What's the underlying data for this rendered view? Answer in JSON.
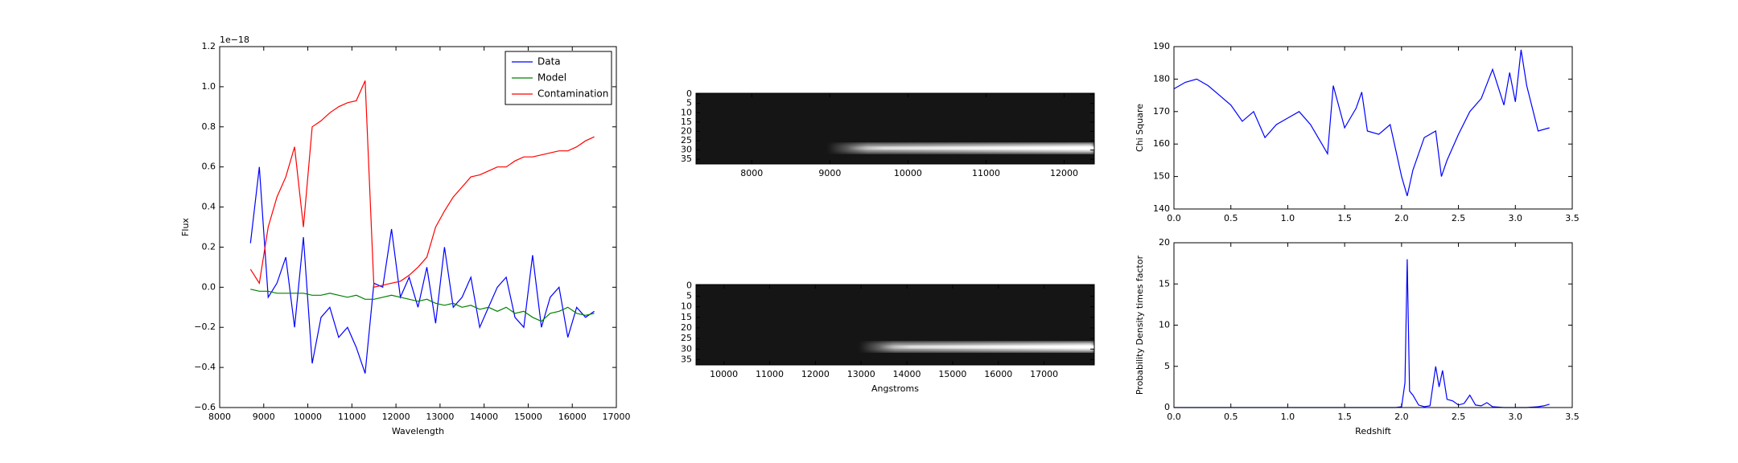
{
  "chart_data": [
    {
      "type": "line",
      "xlabel": "Wavelength",
      "ylabel": "Flux",
      "offset_text": "1e−18",
      "x": [
        8700,
        8900,
        9100,
        9300,
        9500,
        9700,
        9900,
        10100,
        10300,
        10500,
        10700,
        10900,
        11100,
        11300,
        11500,
        11700,
        11900,
        12100,
        12300,
        12500,
        12700,
        12900,
        13100,
        13300,
        13500,
        13700,
        13900,
        14100,
        14300,
        14500,
        14700,
        14900,
        15100,
        15300,
        15500,
        15700,
        15900,
        16100,
        16300,
        16500
      ],
      "series": [
        {
          "name": "Data",
          "color": "#0000ff",
          "values": [
            0.22,
            0.6,
            -0.05,
            0.02,
            0.15,
            -0.2,
            0.25,
            -0.38,
            -0.15,
            -0.1,
            -0.25,
            -0.2,
            -0.3,
            -0.43,
            0.02,
            0.0,
            0.29,
            -0.05,
            0.05,
            -0.1,
            0.1,
            -0.18,
            0.2,
            -0.1,
            -0.05,
            0.05,
            -0.2,
            -0.1,
            0.0,
            0.05,
            -0.15,
            -0.2,
            0.16,
            -0.2,
            -0.05,
            0.0,
            -0.25,
            -0.1,
            -0.15,
            -0.12
          ]
        },
        {
          "name": "Model",
          "color": "#008000",
          "values": [
            -0.01,
            -0.02,
            -0.02,
            -0.03,
            -0.03,
            -0.03,
            -0.03,
            -0.04,
            -0.04,
            -0.03,
            -0.04,
            -0.05,
            -0.04,
            -0.06,
            -0.06,
            -0.05,
            -0.04,
            -0.05,
            -0.06,
            -0.07,
            -0.06,
            -0.08,
            -0.09,
            -0.08,
            -0.1,
            -0.09,
            -0.11,
            -0.1,
            -0.12,
            -0.1,
            -0.13,
            -0.12,
            -0.15,
            -0.17,
            -0.13,
            -0.12,
            -0.1,
            -0.13,
            -0.14,
            -0.13
          ]
        },
        {
          "name": "Contamination",
          "color": "#ff0000",
          "values": [
            0.09,
            0.02,
            0.3,
            0.45,
            0.55,
            0.7,
            0.3,
            0.8,
            0.83,
            0.87,
            0.9,
            0.92,
            0.93,
            1.03,
            0.0,
            0.01,
            0.02,
            0.03,
            0.06,
            0.1,
            0.15,
            0.3,
            0.38,
            0.45,
            0.5,
            0.55,
            0.56,
            0.58,
            0.6,
            0.6,
            0.63,
            0.65,
            0.65,
            0.66,
            0.67,
            0.68,
            0.68,
            0.7,
            0.73,
            0.75
          ]
        }
      ],
      "xlim": [
        8000,
        17000
      ],
      "xticks": [
        8000,
        9000,
        10000,
        11000,
        12000,
        13000,
        14000,
        15000,
        16000,
        17000
      ],
      "ylim": [
        -0.6,
        1.2
      ],
      "yticks": [
        {
          "value": -0.6,
          "label": "−0.6"
        },
        {
          "value": -0.4,
          "label": "−0.4"
        },
        {
          "value": -0.2,
          "label": "−0.2"
        },
        {
          "value": 0,
          "label": "0.0"
        },
        0.2,
        0.4,
        0.6,
        0.8,
        {
          "value": 1,
          "label": "1.0"
        },
        1.2
      ],
      "legend": "upper right"
    },
    {
      "type": "image",
      "xlim": [
        7286,
        12386
      ],
      "xticks": [
        8000,
        9000,
        10000,
        11000,
        12000
      ],
      "ylim": [
        -0.5,
        37.5
      ],
      "invert_y": true,
      "yticks": [
        0,
        5,
        10,
        15,
        20,
        25,
        30,
        35
      ]
    },
    {
      "type": "image",
      "xlabel": "Angstroms",
      "xlim": [
        9390,
        18098
      ],
      "xticks": [
        10000,
        11000,
        12000,
        13000,
        14000,
        15000,
        16000,
        17000
      ],
      "ylim": [
        -0.5,
        37.5
      ],
      "invert_y": true,
      "yticks": [
        0,
        5,
        10,
        15,
        20,
        25,
        30,
        35
      ]
    },
    {
      "type": "line",
      "ylabel": "Chi Square",
      "x": [
        0,
        0.1,
        0.2,
        0.3,
        0.4,
        0.5,
        0.6,
        0.7,
        0.8,
        0.9,
        1,
        1.1,
        1.2,
        1.3,
        1.35,
        1.4,
        1.5,
        1.6,
        1.65,
        1.7,
        1.8,
        1.9,
        2,
        2.05,
        2.1,
        2.2,
        2.3,
        2.35,
        2.4,
        2.5,
        2.6,
        2.7,
        2.8,
        2.9,
        2.95,
        3,
        3.05,
        3.1,
        3.2,
        3.3
      ],
      "series": [
        {
          "name": "Chi Square",
          "color": "#0000ff",
          "values": [
            177,
            179,
            180,
            178,
            175,
            172,
            167,
            170,
            162,
            166,
            168,
            170,
            166,
            160,
            157,
            178,
            165,
            171,
            176,
            164,
            163,
            166,
            150,
            144,
            152,
            162,
            164,
            150,
            155,
            163,
            170,
            174,
            183,
            172,
            182,
            173,
            189,
            178,
            164,
            165
          ]
        }
      ],
      "xlim": [
        0,
        3.5
      ],
      "xticks": [
        {
          "value": 0,
          "label": "0.0"
        },
        0.5,
        {
          "value": 1,
          "label": "1.0"
        },
        1.5,
        {
          "value": 2,
          "label": "2.0"
        },
        2.5,
        {
          "value": 3,
          "label": "3.0"
        },
        3.5
      ],
      "ylim": [
        140,
        190
      ],
      "yticks": [
        140,
        150,
        160,
        170,
        180,
        190
      ]
    },
    {
      "type": "line",
      "xlabel": "Redshift",
      "ylabel": "Probability Density times factor",
      "x": [
        0,
        0.25,
        0.5,
        0.75,
        1,
        1.25,
        1.5,
        1.75,
        1.95,
        2,
        2.03,
        2.05,
        2.07,
        2.1,
        2.15,
        2.2,
        2.25,
        2.3,
        2.33,
        2.36,
        2.4,
        2.45,
        2.5,
        2.55,
        2.6,
        2.65,
        2.7,
        2.75,
        2.8,
        2.9,
        3,
        3.1,
        3.2,
        3.25,
        3.3
      ],
      "series": [
        {
          "name": "Probability",
          "color": "#0000ff",
          "values": [
            0,
            0,
            0,
            0,
            0,
            0,
            0,
            0,
            0,
            0.1,
            3,
            18,
            2,
            1.5,
            0.3,
            0.1,
            0.2,
            5,
            2.5,
            4.5,
            1,
            0.8,
            0.3,
            0.5,
            1.5,
            0.3,
            0.2,
            0.6,
            0.1,
            0,
            0,
            0,
            0.1,
            0.2,
            0.4
          ]
        }
      ],
      "xlim": [
        0,
        3.5
      ],
      "xticks": [
        {
          "value": 0,
          "label": "0.0"
        },
        0.5,
        {
          "value": 1,
          "label": "1.0"
        },
        1.5,
        {
          "value": 2,
          "label": "2.0"
        },
        2.5,
        {
          "value": 3,
          "label": "3.0"
        },
        3.5
      ],
      "ylim": [
        0,
        20
      ],
      "yticks": [
        0,
        5,
        10,
        15,
        20
      ]
    }
  ]
}
